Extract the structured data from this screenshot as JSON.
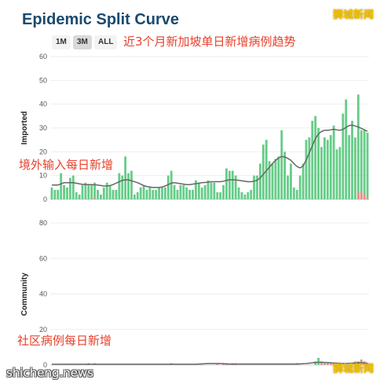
{
  "title": "Epidemic Split Curve",
  "range_buttons": [
    {
      "label": "1M",
      "active": false
    },
    {
      "label": "3M",
      "active": true
    },
    {
      "label": "ALL",
      "active": false
    }
  ],
  "annotations": {
    "headline": "近3个月新加坡单日新增病例趋势",
    "imported": "境外输入每日新增",
    "community": "社区病例每日新增"
  },
  "watermarks": {
    "top_right": "狮城新闻",
    "bottom_left": "shicheng.news",
    "bottom_right": "狮城新闻"
  },
  "colors": {
    "bar_green": "#66cc88",
    "bar_red": "#f08a8a",
    "trend_line": "#666666",
    "title": "#1a4a6e"
  },
  "chart_data": [
    {
      "type": "bar",
      "ylabel": "Imported",
      "ylim": [
        0,
        60
      ],
      "yticks": [
        0,
        10,
        20,
        30,
        40,
        50,
        60
      ],
      "grid": true,
      "series": [
        {
          "name": "",
          "values": [
            5,
            4,
            4,
            11,
            6,
            5,
            9,
            10,
            3,
            2,
            6,
            7,
            6,
            6,
            7,
            4,
            2,
            5,
            7,
            6,
            4,
            4,
            11,
            10,
            18,
            11,
            12,
            2,
            3,
            5,
            6,
            4,
            5,
            4,
            4,
            5,
            5,
            5,
            10,
            12,
            6,
            4,
            6,
            6,
            5,
            4,
            4,
            8,
            7,
            5,
            6,
            8,
            7,
            7,
            3,
            3,
            6,
            13,
            12,
            12,
            10,
            5,
            3,
            2,
            3,
            4,
            10,
            10,
            15,
            23,
            25,
            16,
            15,
            17,
            18,
            29,
            20,
            10,
            15,
            5,
            4,
            10,
            15,
            25,
            26,
            33,
            35,
            30,
            22,
            26,
            25,
            27,
            31,
            21,
            22,
            36,
            42,
            27,
            33,
            26,
            44,
            29,
            29,
            28
          ]
        },
        {
          "name": "",
          "values": [
            0,
            0,
            0,
            0,
            0,
            0,
            0,
            0,
            0,
            0,
            0,
            0,
            0,
            0,
            1,
            0,
            0,
            0,
            0,
            0,
            0,
            0,
            0,
            0,
            0,
            0,
            0,
            0,
            0,
            0,
            0,
            0,
            0,
            0,
            0,
            0,
            0,
            0,
            0,
            0,
            0,
            0,
            0,
            0,
            0,
            0,
            0,
            0,
            0,
            0,
            0,
            0,
            0,
            0,
            0,
            0,
            0,
            0,
            0,
            0,
            0,
            0,
            0,
            0,
            0,
            0,
            0,
            0,
            0,
            0,
            0,
            0,
            0,
            0,
            0,
            0,
            0,
            0,
            0,
            0,
            0,
            0,
            0,
            0,
            0,
            0,
            0,
            0,
            0,
            0,
            0,
            0,
            0,
            0,
            0,
            0,
            0,
            0,
            0,
            0,
            3,
            3,
            2,
            1
          ]
        }
      ],
      "trend": [
        6,
        6,
        6,
        6.5,
        7,
        7,
        7,
        7,
        6.8,
        6.5,
        6.3,
        6.2,
        6.2,
        6.2,
        6.1,
        6,
        5.8,
        5.6,
        5.6,
        5.8,
        6.2,
        6.8,
        7.4,
        8,
        8.2,
        8.2,
        7.8,
        7.4,
        7,
        6.4,
        5.8,
        5.4,
        5.2,
        5,
        5,
        5,
        5.2,
        5.6,
        6.2,
        6.8,
        7,
        6.8,
        6.6,
        6.4,
        6.2,
        6.2,
        6.4,
        6.6,
        6.8,
        7,
        7.1,
        7.2,
        7.4,
        7.4,
        7.4,
        7.4,
        7.6,
        8,
        8.2,
        8.2,
        8.1,
        8,
        7.8,
        7.6,
        7.4,
        7.4,
        7.6,
        8,
        9,
        10.5,
        12,
        13.5,
        15,
        16.4,
        17.4,
        18,
        17.8,
        17.2,
        16.4,
        15,
        13.8,
        13.2,
        14,
        16.5,
        19.5,
        22.5,
        25.5,
        27.5,
        28.5,
        29,
        29,
        29.2,
        29.4,
        29.2,
        29,
        29.4,
        30.2,
        31,
        31.2,
        30.8,
        30.4,
        29.8,
        29.2,
        28.6
      ]
    },
    {
      "type": "bar",
      "ylabel": "Community",
      "ylim": [
        0,
        80
      ],
      "yticks": [
        0,
        20,
        40,
        60,
        80
      ],
      "grid": true,
      "series": [
        {
          "name": "",
          "values": [
            0,
            0,
            0,
            0,
            0,
            0,
            0,
            0,
            0,
            0,
            0,
            0,
            0,
            0,
            0,
            0,
            0,
            0,
            0,
            0,
            0,
            0,
            0,
            0,
            0,
            0,
            0,
            0,
            0,
            0,
            0,
            0,
            0,
            0,
            0,
            0,
            0,
            0,
            0,
            0,
            0,
            0,
            0,
            0,
            0,
            0,
            0,
            0,
            0,
            0,
            0,
            0,
            0,
            0,
            0,
            0,
            0,
            0,
            0,
            0,
            0,
            0,
            0,
            0,
            0,
            0,
            0,
            0,
            0,
            0,
            0,
            0,
            0,
            0,
            0,
            0,
            0,
            0,
            0,
            0,
            0,
            0,
            0,
            0,
            0,
            0,
            2,
            4,
            2,
            1,
            1,
            0,
            0,
            0,
            0,
            0,
            0,
            0,
            0,
            1,
            2,
            3,
            2,
            0
          ]
        },
        {
          "name": "",
          "values": [
            0,
            0,
            0,
            0,
            0,
            0,
            0,
            0,
            0,
            0,
            0,
            0,
            1,
            0,
            1,
            0,
            0,
            0,
            0,
            0,
            0,
            0,
            0,
            0,
            0,
            0,
            0,
            0,
            0,
            0,
            0,
            0,
            0,
            0,
            0,
            0,
            0,
            0,
            0,
            1,
            0,
            0,
            0,
            0,
            0,
            0,
            0,
            0,
            0,
            0,
            0,
            0,
            0,
            0,
            1,
            0,
            1,
            1,
            0,
            1,
            1,
            0,
            0,
            0,
            0,
            0,
            0,
            0,
            0,
            0,
            0,
            0,
            0,
            0,
            0,
            0,
            0,
            0,
            0,
            0,
            1,
            0,
            0,
            0,
            0,
            0,
            0,
            0,
            1,
            0,
            1,
            1,
            1,
            0,
            0,
            0,
            0,
            0,
            0,
            2,
            1,
            3,
            2,
            1
          ]
        }
      ],
      "trend": [
        0.4,
        0.4,
        0.4,
        0.4,
        0.4,
        0.4,
        0.4,
        0.4,
        0.4,
        0.4,
        0.4,
        0.4,
        0.4,
        0.4,
        0.4,
        0.4,
        0.4,
        0.4,
        0.4,
        0.4,
        0.4,
        0.4,
        0.4,
        0.4,
        0.4,
        0.4,
        0.4,
        0.4,
        0.4,
        0.4,
        0.4,
        0.4,
        0.4,
        0.4,
        0.4,
        0.4,
        0.4,
        0.4,
        0.4,
        0.4,
        0.4,
        0.4,
        0.4,
        0.4,
        0.4,
        0.4,
        0.4,
        0.4,
        0.5,
        0.6,
        0.7,
        0.8,
        0.8,
        0.8,
        0.8,
        0.8,
        0.7,
        0.6,
        0.5,
        0.5,
        0.5,
        0.5,
        0.5,
        0.5,
        0.5,
        0.5,
        0.5,
        0.5,
        0.5,
        0.5,
        0.5,
        0.5,
        0.5,
        0.5,
        0.5,
        0.5,
        0.5,
        0.5,
        0.5,
        0.5,
        0.6,
        0.6,
        0.7,
        0.8,
        1,
        1.2,
        1.4,
        1.5,
        1.5,
        1.4,
        1.3,
        1.2,
        1.1,
        1,
        0.9,
        0.8,
        0.8,
        0.9,
        1,
        1.1,
        1.2,
        1.2,
        1.1,
        1
      ]
    }
  ]
}
